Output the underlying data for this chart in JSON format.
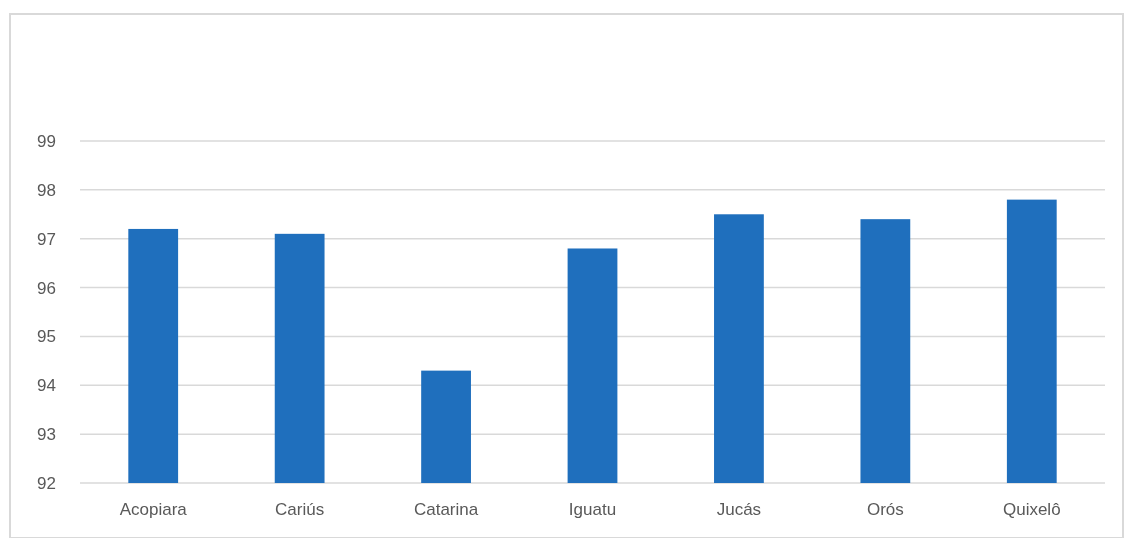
{
  "chart_data": {
    "type": "bar",
    "categories": [
      "Acopiara",
      "Cariús",
      "Catarina",
      "Iguatu",
      "Jucás",
      "Orós",
      "Quixelô"
    ],
    "values": [
      97.2,
      97.1,
      94.3,
      96.8,
      97.5,
      97.4,
      97.8
    ],
    "color": "#1f6fbd",
    "ylim": [
      92,
      99
    ],
    "yticks": [
      92,
      93,
      94,
      95,
      96,
      97,
      98,
      99
    ],
    "grid": "y"
  }
}
